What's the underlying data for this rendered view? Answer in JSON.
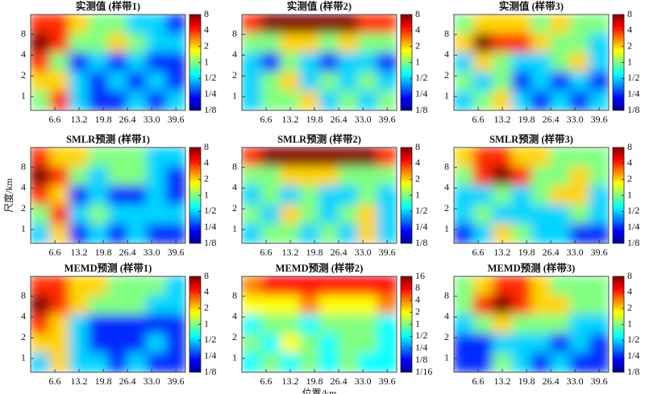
{
  "chart_data": [
    {
      "type": "heatmap",
      "title": "实测值 (样带1)",
      "xlim": [
        0,
        42.2
      ],
      "xticks": [
        6.6,
        13.2,
        19.8,
        26.4,
        {
          "value": 33,
          "label": "33.0"
        },
        39.6
      ],
      "ylim": [
        0.63,
        15.6
      ],
      "yticks": [
        1,
        2,
        4,
        8
      ],
      "log_y": true,
      "colorbar_lim": [
        0.125,
        8
      ],
      "colorbar_ticks": [
        {
          "value": 0.125,
          "label": "1/8"
        },
        {
          "value": 0.25,
          "label": "1/4"
        },
        {
          "value": 0.5,
          "label": "1/2"
        },
        1,
        2,
        4,
        8
      ],
      "z": [
        [
          4,
          4,
          2,
          1,
          1,
          0.5,
          0.5,
          0.25
        ],
        [
          8,
          4,
          1,
          1,
          2,
          1,
          0.5,
          0.5
        ],
        [
          4,
          1,
          0.25,
          0.5,
          0.25,
          0.5,
          0.25,
          0.25
        ],
        [
          2,
          2,
          0.5,
          0.25,
          0.5,
          0.25,
          0.5,
          0.25
        ],
        [
          1,
          4,
          0.5,
          0.25,
          0.25,
          0.5,
          0.25,
          0.5
        ]
      ]
    },
    {
      "type": "heatmap",
      "title": "实测值 (样带2)",
      "xlim": [
        0,
        42.2
      ],
      "xticks": [
        6.6,
        13.2,
        19.8,
        26.4,
        {
          "value": 33,
          "label": "33.0"
        },
        39.6
      ],
      "ylim": [
        0.63,
        15.6
      ],
      "yticks": [
        1,
        2,
        4,
        8
      ],
      "log_y": true,
      "colorbar_lim": [
        0.125,
        8
      ],
      "colorbar_ticks": [
        {
          "value": 0.125,
          "label": "1/8"
        },
        {
          "value": 0.25,
          "label": "1/4"
        },
        {
          "value": 0.5,
          "label": "1/2"
        },
        1,
        2,
        4,
        8
      ],
      "z": [
        [
          4,
          8,
          8,
          8,
          8,
          8,
          4,
          4
        ],
        [
          1,
          1,
          2,
          2,
          1,
          2,
          1,
          1
        ],
        [
          0.5,
          0.25,
          1,
          0.5,
          0.25,
          0.5,
          0.5,
          0.25
        ],
        [
          0.5,
          1,
          2,
          0.5,
          1,
          0.5,
          1,
          0.5
        ],
        [
          0.5,
          1,
          1,
          2,
          0.5,
          1,
          0.5,
          1
        ]
      ]
    },
    {
      "type": "heatmap",
      "title": "实测值 (样带3)",
      "xlim": [
        0,
        42.2
      ],
      "xticks": [
        6.6,
        13.2,
        19.8,
        26.4,
        {
          "value": 33,
          "label": "33.0"
        },
        39.6
      ],
      "ylim": [
        0.63,
        15.6
      ],
      "yticks": [
        1,
        2,
        4,
        8
      ],
      "log_y": true,
      "colorbar_lim": [
        0.125,
        8
      ],
      "colorbar_ticks": [
        {
          "value": 0.125,
          "label": "1/8"
        },
        {
          "value": 0.25,
          "label": "1/4"
        },
        {
          "value": 0.5,
          "label": "1/2"
        },
        1,
        2,
        4,
        8
      ],
      "z": [
        [
          1,
          2,
          2,
          2,
          1,
          2,
          1,
          1
        ],
        [
          2,
          8,
          4,
          4,
          2,
          1,
          1,
          0.5
        ],
        [
          0.5,
          2,
          1,
          0.5,
          0.5,
          1,
          2,
          0.5
        ],
        [
          1,
          0.5,
          1,
          0.25,
          0.5,
          0.25,
          0.5,
          0.25
        ],
        [
          0.5,
          1,
          2,
          0.5,
          0.25,
          0.5,
          0.25,
          0.5
        ]
      ]
    },
    {
      "type": "heatmap",
      "title": "SMLR预测 (样带1)",
      "ylabel": "尺度/km",
      "xlim": [
        0,
        42.2
      ],
      "xticks": [
        6.6,
        13.2,
        19.8,
        26.4,
        {
          "value": 33,
          "label": "33.0"
        },
        39.6
      ],
      "ylim": [
        0.63,
        15.6
      ],
      "yticks": [
        1,
        2,
        4,
        8
      ],
      "log_y": true,
      "colorbar_lim": [
        0.125,
        8
      ],
      "colorbar_ticks": [
        {
          "value": 0.125,
          "label": "1/8"
        },
        {
          "value": 0.25,
          "label": "1/4"
        },
        {
          "value": 0.5,
          "label": "1/2"
        },
        1,
        2,
        4,
        8
      ],
      "z": [
        [
          4,
          2,
          2,
          1,
          1,
          1,
          0.5,
          0.5
        ],
        [
          8,
          4,
          1,
          0.5,
          1,
          1,
          0.5,
          0.25
        ],
        [
          4,
          2,
          0.25,
          0.5,
          0.25,
          0.25,
          0.5,
          0.25
        ],
        [
          1,
          4,
          0.5,
          1,
          0.5,
          0.5,
          0.5,
          0.5
        ],
        [
          0.5,
          2,
          0.25,
          0.5,
          0.25,
          0.5,
          0.25,
          0.25
        ]
      ]
    },
    {
      "type": "heatmap",
      "title": "SMLR预测 (样带2)",
      "xlim": [
        0,
        42.2
      ],
      "xticks": [
        6.6,
        13.2,
        19.8,
        26.4,
        {
          "value": 33,
          "label": "33.0"
        },
        39.6
      ],
      "ylim": [
        0.63,
        15.6
      ],
      "yticks": [
        1,
        2,
        4,
        8
      ],
      "log_y": true,
      "colorbar_lim": [
        0.125,
        8
      ],
      "colorbar_ticks": [
        {
          "value": 0.125,
          "label": "1/8"
        },
        {
          "value": 0.25,
          "label": "1/4"
        },
        {
          "value": 0.5,
          "label": "1/2"
        },
        1,
        2,
        4,
        8
      ],
      "z": [
        [
          4,
          8,
          8,
          8,
          8,
          8,
          8,
          4
        ],
        [
          1,
          1,
          2,
          2,
          2,
          1,
          1,
          1
        ],
        [
          0.5,
          1,
          0.5,
          1,
          0.5,
          0.5,
          1,
          0.5
        ],
        [
          1,
          0.5,
          2,
          1,
          0.5,
          1,
          2,
          0.5
        ],
        [
          0.5,
          1,
          1,
          0.5,
          1,
          0.5,
          2,
          0.5
        ]
      ]
    },
    {
      "type": "heatmap",
      "title": "SMLR预测 (样带3)",
      "xlim": [
        0,
        42.2
      ],
      "xticks": [
        6.6,
        13.2,
        19.8,
        26.4,
        {
          "value": 33,
          "label": "33.0"
        },
        39.6
      ],
      "ylim": [
        0.63,
        15.6
      ],
      "yticks": [
        1,
        2,
        4,
        8
      ],
      "log_y": true,
      "colorbar_lim": [
        0.125,
        8
      ],
      "colorbar_ticks": [
        {
          "value": 0.125,
          "label": "1/8"
        },
        {
          "value": 0.25,
          "label": "1/4"
        },
        {
          "value": 0.5,
          "label": "1/2"
        },
        1,
        2,
        4,
        8
      ],
      "z": [
        [
          2,
          4,
          4,
          2,
          2,
          1,
          1,
          1
        ],
        [
          1,
          4,
          8,
          4,
          1,
          1,
          2,
          1
        ],
        [
          0.5,
          0.5,
          1,
          0.5,
          1,
          2,
          2,
          0.5
        ],
        [
          0.5,
          1,
          0.5,
          0.5,
          0.5,
          0.5,
          1,
          0.5
        ],
        [
          0.25,
          0.5,
          2,
          1,
          0.5,
          0.5,
          0.25,
          0.25
        ]
      ]
    },
    {
      "type": "heatmap",
      "title": "MEMD预测 (样带1)",
      "xlim": [
        0,
        42.2
      ],
      "xticks": [
        6.6,
        13.2,
        19.8,
        26.4,
        {
          "value": 33,
          "label": "33.0"
        },
        39.6
      ],
      "ylim": [
        0.63,
        15.6
      ],
      "yticks": [
        1,
        2,
        4,
        8
      ],
      "log_y": true,
      "colorbar_lim": [
        0.125,
        8
      ],
      "colorbar_ticks": [
        {
          "value": 0.125,
          "label": "1/8"
        },
        {
          "value": 0.25,
          "label": "1/4"
        },
        {
          "value": 0.5,
          "label": "1/2"
        },
        1,
        2,
        4,
        8
      ],
      "z": [
        [
          4,
          4,
          2,
          2,
          1,
          1,
          1,
          0.5
        ],
        [
          8,
          4,
          2,
          1,
          1,
          1,
          0.5,
          0.5
        ],
        [
          4,
          2,
          0.5,
          0.25,
          0.25,
          0.25,
          0.25,
          0.25
        ],
        [
          2,
          2,
          0.5,
          0.25,
          0.25,
          0.25,
          0.5,
          0.25
        ],
        [
          0.5,
          2,
          0.5,
          0.5,
          0.25,
          0.5,
          0.25,
          0.25
        ]
      ]
    },
    {
      "type": "heatmap",
      "title": "MEMD预测 (样带2)",
      "xlabel": "位置/km",
      "xlim": [
        0,
        42.2
      ],
      "xticks": [
        6.6,
        13.2,
        19.8,
        26.4,
        {
          "value": 33,
          "label": "33.0"
        },
        39.6
      ],
      "ylim": [
        0.63,
        15.6
      ],
      "yticks": [
        1,
        2,
        4,
        8
      ],
      "log_y": true,
      "colorbar_lim": [
        0.0625,
        16
      ],
      "colorbar_ticks": [
        {
          "value": 0.0625,
          "label": "1/16"
        },
        {
          "value": 0.125,
          "label": "1/8"
        },
        {
          "value": 0.25,
          "label": "1/4"
        },
        {
          "value": 0.5,
          "label": "1/2"
        },
        1,
        2,
        4,
        8,
        16
      ],
      "z": [
        [
          4,
          8,
          8,
          8,
          8,
          8,
          8,
          8
        ],
        [
          2,
          2,
          2,
          4,
          2,
          2,
          2,
          4
        ],
        [
          0.5,
          1,
          1,
          0.5,
          1,
          1,
          1,
          0.5
        ],
        [
          1,
          0.5,
          2,
          1,
          0.5,
          1,
          1,
          0.5
        ],
        [
          0.5,
          1,
          0.5,
          1,
          0.5,
          1,
          0.5,
          0.5
        ]
      ]
    },
    {
      "type": "heatmap",
      "title": "MEMD预测 (样带3)",
      "xlim": [
        0,
        42.2
      ],
      "xticks": [
        6.6,
        13.2,
        19.8,
        26.4,
        {
          "value": 33,
          "label": "33.0"
        },
        39.6
      ],
      "ylim": [
        0.63,
        15.6
      ],
      "yticks": [
        1,
        2,
        4,
        8
      ],
      "log_y": true,
      "colorbar_lim": [
        0.125,
        8
      ],
      "colorbar_ticks": [
        {
          "value": 0.125,
          "label": "1/8"
        },
        {
          "value": 0.25,
          "label": "1/4"
        },
        {
          "value": 0.5,
          "label": "1/2"
        },
        1,
        2,
        4,
        8
      ],
      "z": [
        [
          1,
          2,
          4,
          4,
          2,
          1,
          1,
          1
        ],
        [
          1,
          4,
          8,
          4,
          2,
          2,
          1,
          1
        ],
        [
          0.5,
          1,
          2,
          1,
          1,
          1,
          0.5,
          0.5
        ],
        [
          0.25,
          0.25,
          0.5,
          0.5,
          0.5,
          0.25,
          0.5,
          0.25
        ],
        [
          0.25,
          0.25,
          1,
          0.5,
          0.25,
          0.5,
          0.25,
          0.25
        ]
      ]
    }
  ]
}
